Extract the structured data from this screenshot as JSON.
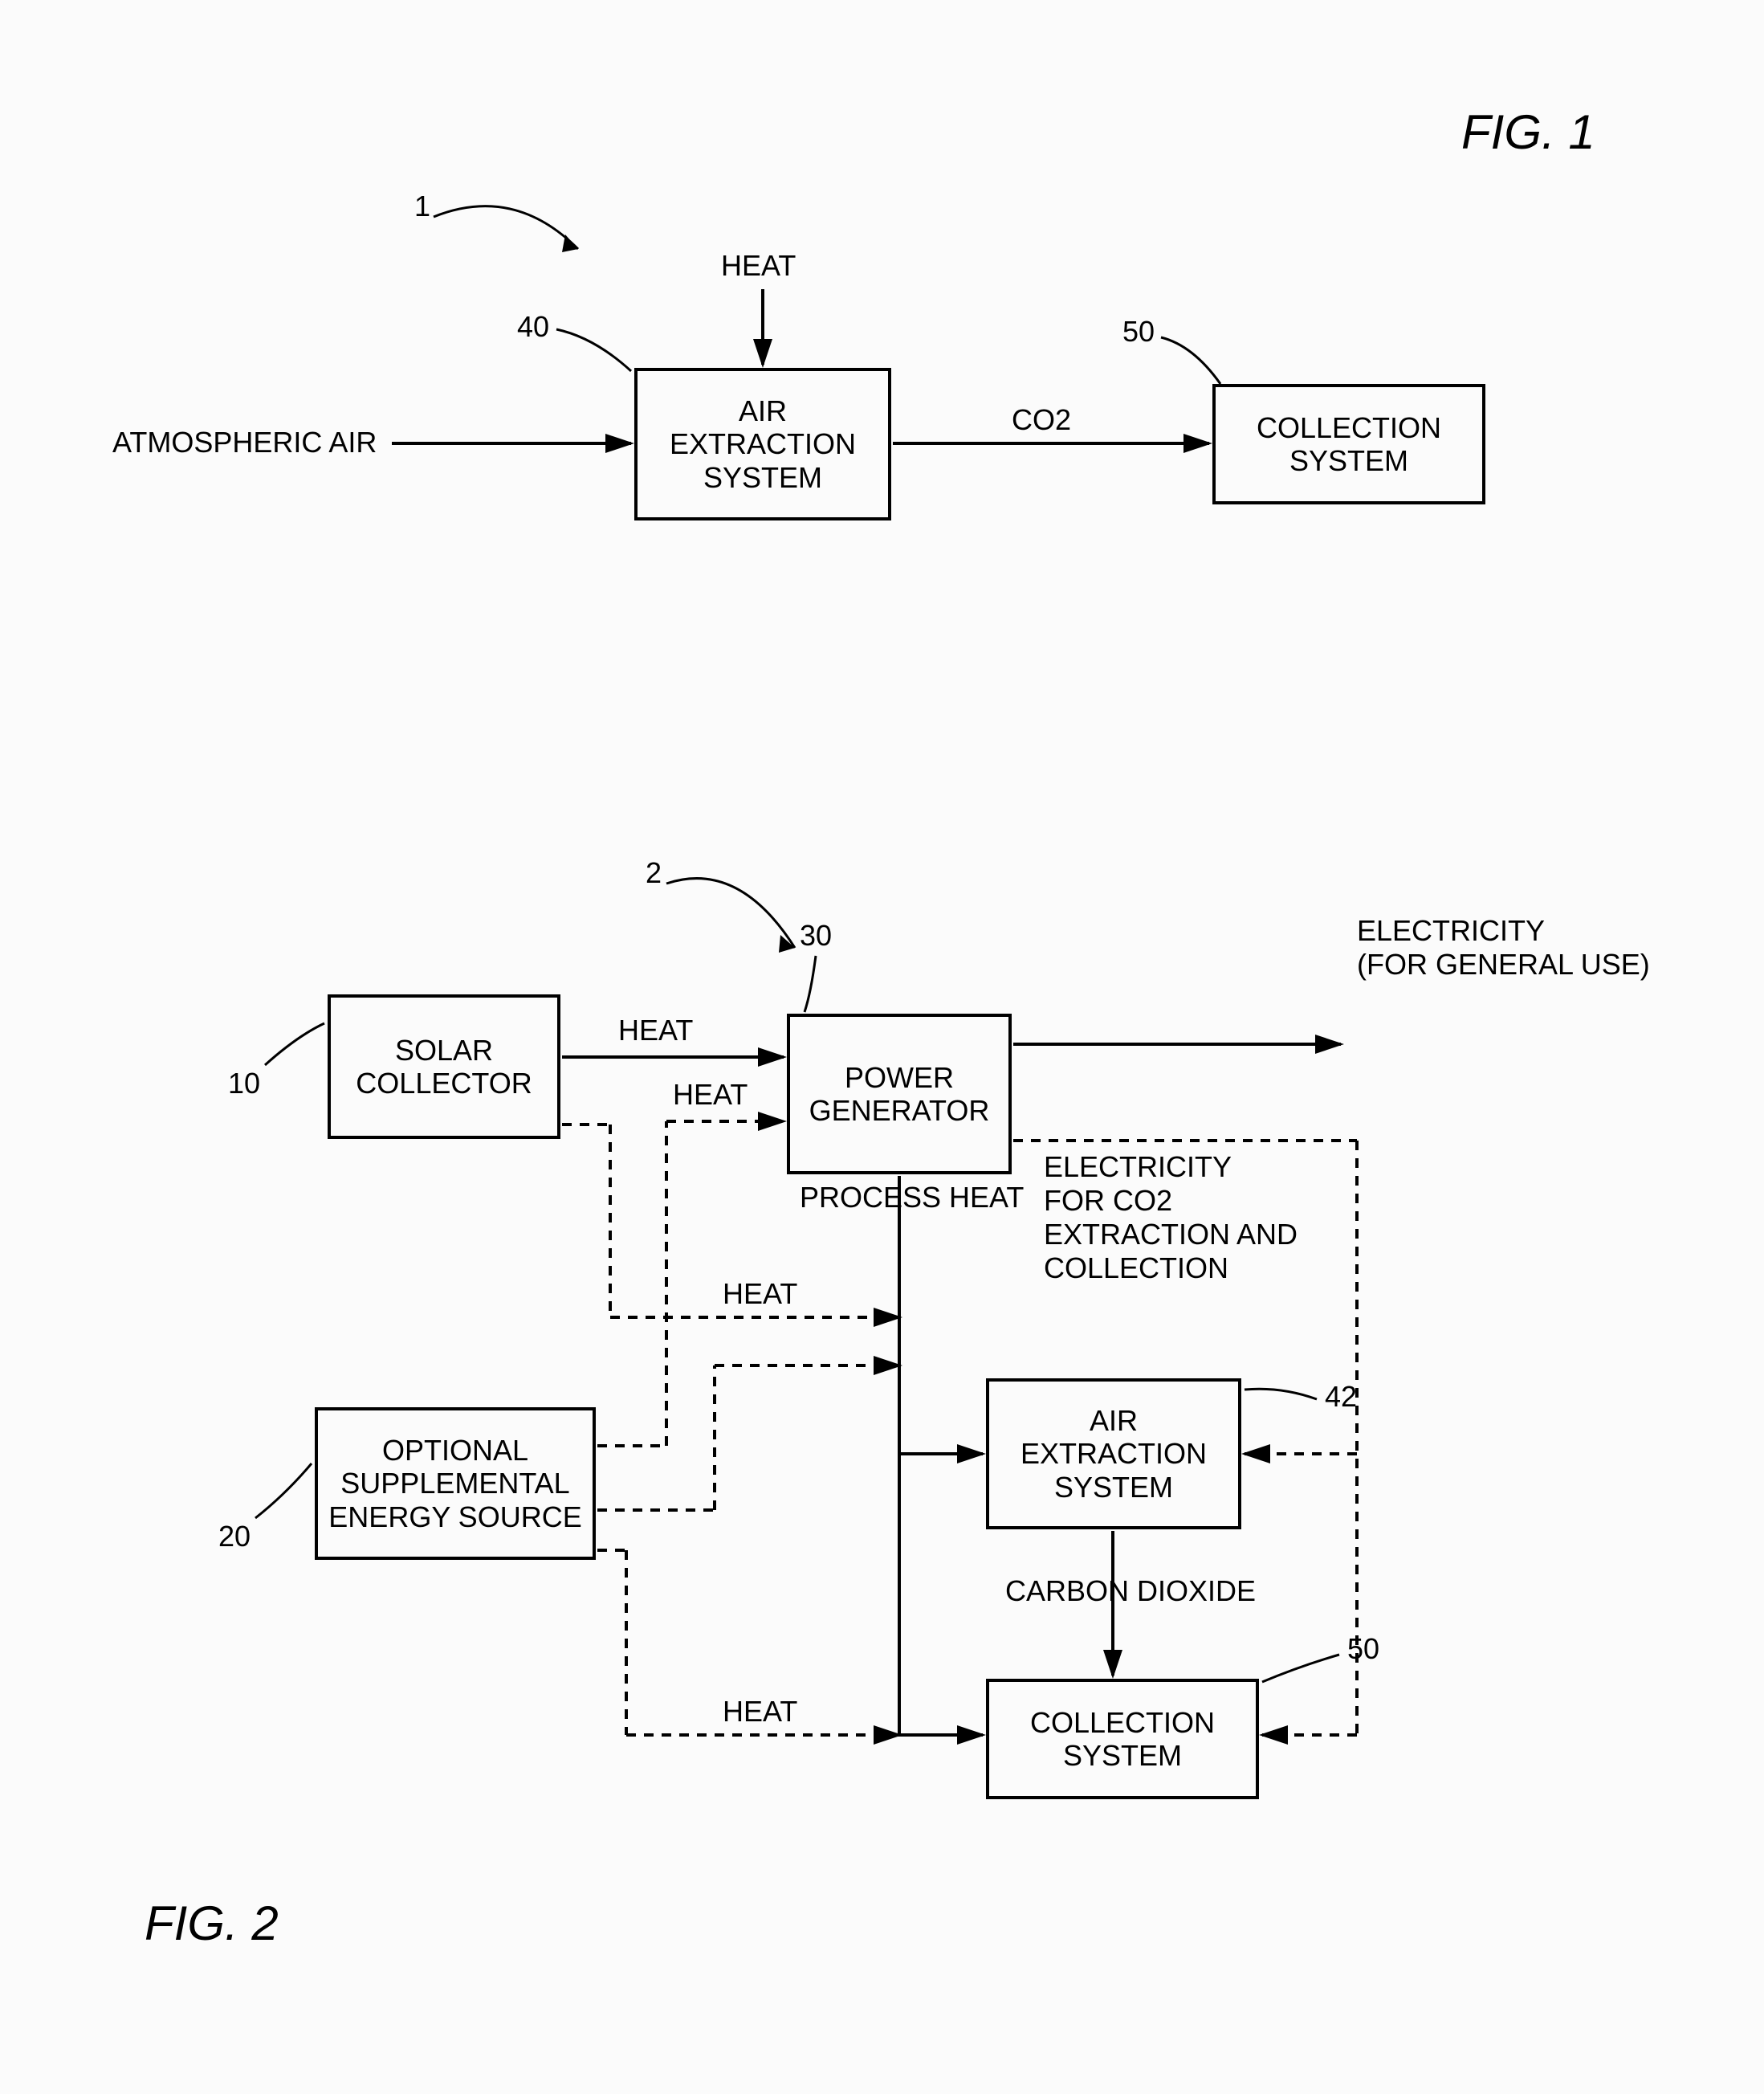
{
  "colors": {
    "line": "#000000",
    "bg": "#fbfbfb",
    "text": "#000000"
  },
  "style": {
    "line_width": 4,
    "dash": "12 10",
    "font_size": 36,
    "font_size_fig": 60,
    "arrow_head": 22
  },
  "fig1": {
    "fig_label": "FIG. 1",
    "sys_ref": "1",
    "air_ext": {
      "label": "AIR\nEXTRACTION\nSYSTEM",
      "ref": "40"
    },
    "collection": {
      "label": "COLLECTION\nSYSTEM",
      "ref": "50"
    },
    "inputs": {
      "atm_air": "ATMOSPHERIC AIR",
      "heat": "HEAT"
    },
    "edge": "CO2"
  },
  "fig2": {
    "fig_label": "FIG. 2",
    "sys_ref": "2",
    "solar": {
      "label": "SOLAR\nCOLLECTOR",
      "ref": "10"
    },
    "supp": {
      "label": "OPTIONAL\nSUPPLEMENTAL\nENERGY SOURCE",
      "ref": "20"
    },
    "power": {
      "label": "POWER\nGENERATOR",
      "ref": "30"
    },
    "air_ext": {
      "label": "AIR\nEXTRACTION\nSYSTEM",
      "ref": "42"
    },
    "collection": {
      "label": "COLLECTION\nSYSTEM",
      "ref": "50"
    },
    "edges": {
      "heat": "HEAT",
      "process_heat": "PROCESS HEAT",
      "electricity_general": "ELECTRICITY\n(FOR GENERAL USE)",
      "electricity_for": "ELECTRICITY\nFOR CO2\nEXTRACTION AND\nCOLLECTION",
      "carbon_dioxide": "CARBON DIOXIDE"
    }
  }
}
